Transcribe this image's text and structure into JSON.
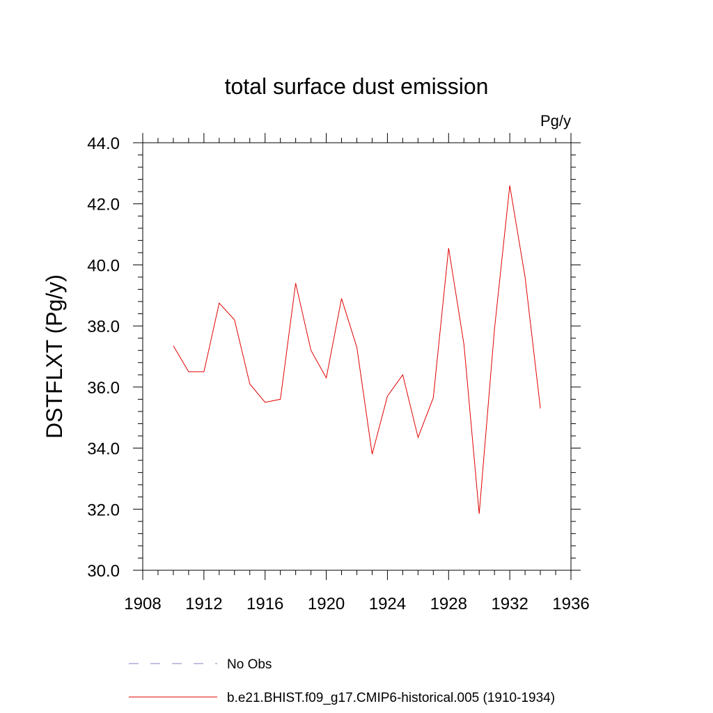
{
  "chart_data": {
    "type": "line",
    "title": "total surface dust emission",
    "units": "Pg/y",
    "ylabel": "DSTFLXT  (Pg/y)",
    "xlabel": "",
    "xlim": [
      1908,
      1936
    ],
    "ylim": [
      30.0,
      44.0
    ],
    "xticks": [
      "1908",
      "1912",
      "1916",
      "1920",
      "1924",
      "1928",
      "1932",
      "1936"
    ],
    "yticks": [
      "30.0",
      "32.0",
      "34.0",
      "36.0",
      "38.0",
      "40.0",
      "42.0",
      "44.0"
    ],
    "x": [
      1910,
      1911,
      1912,
      1913,
      1914,
      1915,
      1916,
      1917,
      1918,
      1919,
      1920,
      1921,
      1922,
      1923,
      1924,
      1925,
      1926,
      1927,
      1928,
      1929,
      1930,
      1931,
      1932,
      1933,
      1934
    ],
    "series": [
      {
        "name": "b.e21.BHIST.f09_g17.CMIP6-historical.005 (1910-1934)",
        "color": "#e00000",
        "values": [
          37.35,
          36.5,
          36.5,
          38.75,
          38.2,
          36.1,
          35.5,
          35.6,
          39.4,
          37.2,
          36.3,
          38.9,
          37.3,
          33.8,
          35.7,
          36.4,
          34.35,
          35.65,
          40.55,
          37.4,
          31.85,
          37.9,
          42.6,
          39.6,
          35.3
        ]
      }
    ],
    "legend": {
      "placement": "bottom",
      "entries": [
        {
          "label": "No Obs",
          "style": "dashed",
          "color": "#8080c0"
        },
        {
          "label": "b.e21.BHIST.f09_g17.CMIP6-historical.005 (1910-1934)",
          "style": "solid",
          "color": "#e00000"
        }
      ]
    },
    "grid": false
  }
}
